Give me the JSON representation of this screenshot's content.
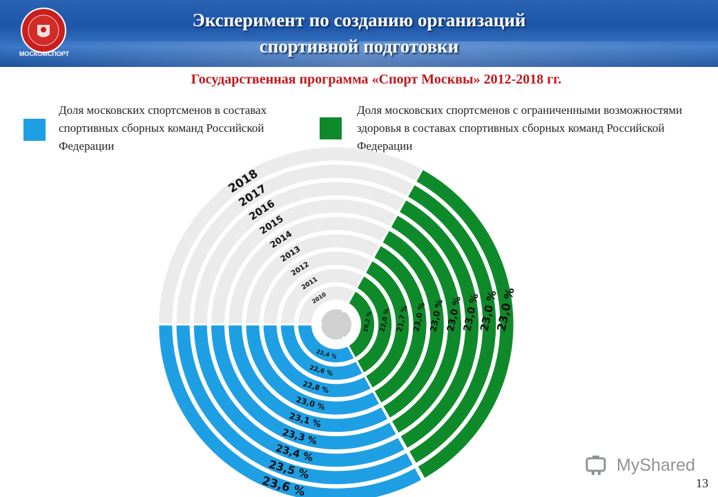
{
  "header": {
    "logo_text": "МОСКОМСПОРТ",
    "title_line1": "Эксперимент по созданию организаций",
    "title_line2": "спортивной подготовки"
  },
  "subtitle": "Государственная программа «Спорт Москвы» 2012-2018 гг.",
  "legend": {
    "blue": "Доля московских спортсменов в составах спортивных сборных команд Российской Федерации",
    "green": "Доля московских спортсменов с ограниченными возможностями здоровья в составах спортивных сборных команд Российской Федерации"
  },
  "colors": {
    "blue": "#1f9fe3",
    "green": "#0f8a2b",
    "grey": "#ebebeb",
    "red": "#c0171d"
  },
  "chart_data": {
    "type": "radial-bar",
    "categories": [
      "2010",
      "2011",
      "2012",
      "2013",
      "2014",
      "2015",
      "2016",
      "2017",
      "2018"
    ],
    "series": [
      {
        "name": "Доля московских спортсменов в составах спортивных сборных команд Российской Федерации",
        "values": [
          22.4,
          22.6,
          22.8,
          23.0,
          23.1,
          23.3,
          23.4,
          23.5,
          23.6
        ],
        "labels": [
          "22,4 %",
          "22,6 %",
          "22,8 %",
          "23,0 %",
          "23,1 %",
          "23,3 %",
          "23,4 %",
          "23,5 %",
          "23,6 %"
        ]
      },
      {
        "name": "Доля московских спортсменов с ограниченными возможностями здоровья в составах спортивных сборных команд Российской Федерации",
        "values": [
          20.2,
          22.0,
          21.7,
          23.0,
          23.0,
          23.0,
          23.0,
          23.0,
          23.0
        ],
        "labels": [
          "20,2 %",
          "22,0 %",
          "21,7 %",
          "23,0 %",
          "23,0 %",
          "23,0 %",
          "23,0 %",
          "23,0 %",
          "23,0 %"
        ]
      }
    ]
  },
  "watermark": "MyShared",
  "page_number": "13"
}
